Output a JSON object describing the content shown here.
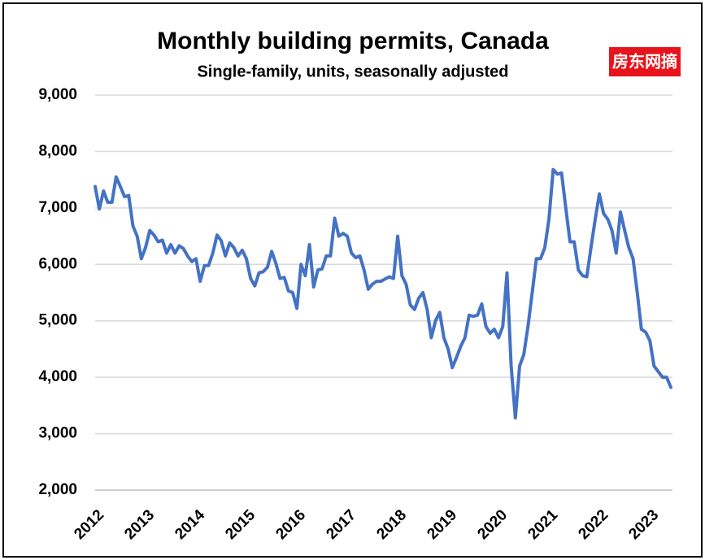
{
  "chart_data": {
    "type": "line",
    "title": "Monthly building permits, Canada",
    "subtitle": "Single-family, units, seasonally adjusted",
    "watermark": "房东网摘",
    "categories": [
      "2012",
      null,
      null,
      null,
      null,
      null,
      null,
      null,
      null,
      null,
      null,
      null,
      "2013",
      null,
      null,
      null,
      null,
      null,
      null,
      null,
      null,
      null,
      null,
      null,
      "2014",
      null,
      null,
      null,
      null,
      null,
      null,
      null,
      null,
      null,
      null,
      null,
      "2015",
      null,
      null,
      null,
      null,
      null,
      null,
      null,
      null,
      null,
      null,
      null,
      "2016",
      null,
      null,
      null,
      null,
      null,
      null,
      null,
      null,
      null,
      null,
      null,
      "2017",
      null,
      null,
      null,
      null,
      null,
      null,
      null,
      null,
      null,
      null,
      null,
      "2018",
      null,
      null,
      null,
      null,
      null,
      null,
      null,
      null,
      null,
      null,
      null,
      "2019",
      null,
      null,
      null,
      null,
      null,
      null,
      null,
      null,
      null,
      null,
      null,
      "2020",
      null,
      null,
      null,
      null,
      null,
      null,
      null,
      null,
      null,
      null,
      null,
      "2021",
      null,
      null,
      null,
      null,
      null,
      null,
      null,
      null,
      null,
      null,
      null,
      "2022",
      null,
      null,
      null,
      null,
      null,
      null,
      null,
      null,
      null,
      null,
      null,
      "2023",
      null,
      null,
      null,
      null,
      null
    ],
    "series": [
      {
        "color": "#4472c4",
        "values": [
          7380,
          6980,
          7300,
          7100,
          7100,
          7550,
          7380,
          7200,
          7220,
          6680,
          6500,
          6100,
          6300,
          6600,
          6520,
          6400,
          6430,
          6200,
          6350,
          6200,
          6330,
          6280,
          6150,
          6050,
          6100,
          5700,
          5980,
          5980,
          6200,
          6520,
          6420,
          6150,
          6380,
          6300,
          6150,
          6250,
          6100,
          5750,
          5620,
          5850,
          5870,
          5950,
          6230,
          6020,
          5750,
          5770,
          5530,
          5500,
          5220,
          6000,
          5800,
          6350,
          5600,
          5900,
          5920,
          6150,
          6150,
          6820,
          6500,
          6550,
          6500,
          6200,
          6120,
          6150,
          5900,
          5560,
          5650,
          5700,
          5700,
          5740,
          5780,
          5750,
          6500,
          5800,
          5650,
          5280,
          5200,
          5400,
          5500,
          5200,
          4700,
          5000,
          5150,
          4700,
          4500,
          4170,
          4350,
          4550,
          4700,
          5100,
          5080,
          5100,
          5300,
          4900,
          4780,
          4850,
          4700,
          4900,
          5850,
          4200,
          3280,
          4200,
          4400,
          4900,
          5500,
          6100,
          6100,
          6300,
          6800,
          7680,
          7600,
          7620,
          7000,
          6400,
          6400,
          5900,
          5800,
          5780,
          6300,
          6800,
          7250,
          6900,
          6800,
          6600,
          6200,
          6930,
          6600,
          6300,
          6100,
          5500,
          4850,
          4800,
          4650,
          4200,
          4100,
          4000,
          4000,
          3820
        ]
      }
    ],
    "ylim": [
      2000,
      9000
    ],
    "yticks": [
      {
        "value": 2000,
        "label": "2,000"
      },
      {
        "value": 3000,
        "label": "3,000"
      },
      {
        "value": 4000,
        "label": "4,000"
      },
      {
        "value": 5000,
        "label": "5,000"
      },
      {
        "value": 6000,
        "label": "6,000"
      },
      {
        "value": 7000,
        "label": "7,000"
      },
      {
        "value": 8000,
        "label": "8,000"
      },
      {
        "value": 9000,
        "label": "9,000"
      }
    ],
    "grid": true
  }
}
